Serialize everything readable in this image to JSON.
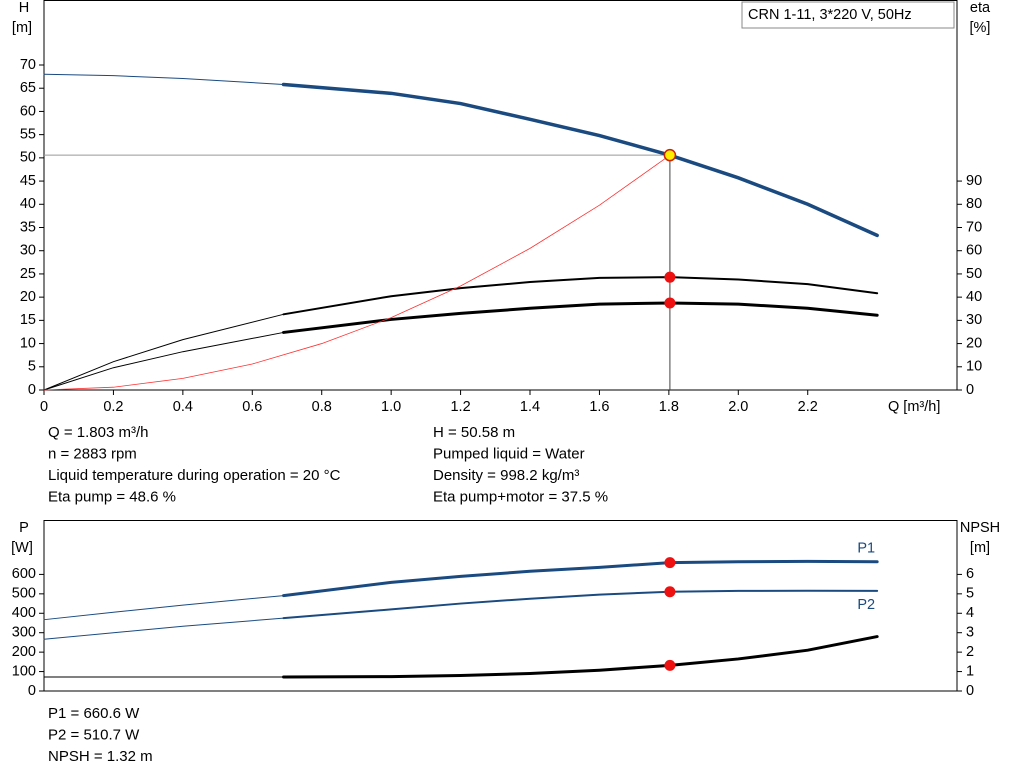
{
  "chart_data": [
    {
      "type": "line",
      "title": "CRN 1-11, 3*220 V, 50Hz",
      "y_label": "H",
      "y_unit": "[m]",
      "y2_label": "eta",
      "y2_unit": "[%]",
      "x_label": "Q [m³/h]",
      "xlim": [
        0,
        2.63
      ],
      "xticks": [
        0,
        0.2,
        0.4,
        0.6,
        0.8,
        {
          "value": 1,
          "label": "1.0"
        },
        1.2,
        1.4,
        1.6,
        1.8,
        {
          "value": 2,
          "label": "2.0"
        },
        2.2
      ],
      "ylim": [
        0,
        84
      ],
      "yticks": [
        0,
        5,
        10,
        15,
        20,
        25,
        30,
        35,
        40,
        45,
        50,
        55,
        60,
        65,
        70
      ],
      "y2lim": [
        0,
        168
      ],
      "y2ticks": [
        0,
        10,
        20,
        30,
        40,
        50,
        60,
        70,
        80,
        90
      ],
      "series": [
        {
          "color": "#1a4a80",
          "line_width": 1,
          "x": [
            0,
            0.2,
            0.4,
            0.69
          ],
          "values": [
            68,
            67.7,
            67.1,
            65.8
          ]
        },
        {
          "color": "#1a4a80",
          "line_width": 3.5,
          "x": [
            0.69,
            1.0,
            1.2,
            1.4,
            1.6,
            1.803,
            2.0,
            2.2,
            2.4
          ],
          "values": [
            65.8,
            63.9,
            61.7,
            58.3,
            54.8,
            50.58,
            45.7,
            40,
            33.3
          ]
        },
        {
          "color": "#000000",
          "line_width": 1,
          "axis": "y2",
          "x": [
            0,
            0.2,
            0.4,
            0.69
          ],
          "values": [
            0,
            12.2,
            21.7,
            32.6
          ]
        },
        {
          "color": "#000000",
          "line_width": 2,
          "axis": "y2",
          "x": [
            0.69,
            1.0,
            1.2,
            1.4,
            1.6,
            1.803,
            2.0,
            2.2,
            2.4
          ],
          "values": [
            32.6,
            40.4,
            43.9,
            46.5,
            48.3,
            48.6,
            47.6,
            45.6,
            41.7
          ]
        },
        {
          "color": "#000000",
          "line_width": 1,
          "axis": "y2",
          "x": [
            0,
            0.2,
            0.4,
            0.69
          ],
          "values": [
            0,
            9.6,
            16.5,
            24.8
          ]
        },
        {
          "color": "#000000",
          "line_width": 3,
          "axis": "y2",
          "x": [
            0.69,
            1.0,
            1.2,
            1.4,
            1.6,
            1.803,
            2.0,
            2.2,
            2.4
          ],
          "values": [
            24.8,
            30.4,
            33,
            35.2,
            37,
            37.5,
            37,
            35.2,
            32.2
          ]
        },
        {
          "color": "#ff3030",
          "line_width": 0.8,
          "x": [
            0,
            0.2,
            0.4,
            0.6,
            0.8,
            1.0,
            1.2,
            1.4,
            1.6,
            1.803
          ],
          "values": [
            0,
            0.6,
            2.5,
            5.6,
            10,
            15.6,
            22.4,
            30.5,
            39.8,
            50.58
          ]
        }
      ],
      "points": [
        {
          "x": 1.803,
          "y": 50.58,
          "color": "#ffee00",
          "guides": true
        },
        {
          "x": 1.803,
          "y": 48.6,
          "axis": "y2",
          "color": "#ee1111"
        },
        {
          "x": 1.803,
          "y": 37.5,
          "axis": "y2",
          "color": "#ee1111"
        }
      ],
      "annotations": [
        [
          "Q = 1.803 m³/h",
          "n = 2883 rpm",
          "Liquid temperature during operation = 20 °C",
          "Eta pump = 48.6 %"
        ],
        [
          "H = 50.58 m",
          "Pumped liquid = Water",
          "Density = 998.2 kg/m³",
          "Eta pump+motor = 37.5 %"
        ]
      ]
    },
    {
      "type": "line",
      "y_label": "P",
      "y_unit": "[W]",
      "y2_label": "NPSH",
      "y2_unit": "[m]",
      "xlim": [
        0,
        2.63
      ],
      "ylim": [
        0,
        880
      ],
      "yticks": [
        0,
        100,
        200,
        300,
        400,
        500,
        600
      ],
      "y2lim": [
        0,
        8.8
      ],
      "y2ticks": [
        0,
        1,
        2,
        3,
        4,
        5,
        6
      ],
      "series": [
        {
          "color": "#1a4a80",
          "line_width": 1,
          "x": [
            0,
            0.2,
            0.4,
            0.69
          ],
          "values": [
            367,
            405,
            442,
            491
          ]
        },
        {
          "name": "P1",
          "label_side": "above",
          "color": "#1a4a80",
          "line_width": 3,
          "x": [
            0.69,
            1.0,
            1.2,
            1.4,
            1.6,
            1.803,
            2.0,
            2.2,
            2.4
          ],
          "values": [
            491,
            559,
            590,
            616,
            636,
            660.6,
            665,
            667,
            665
          ]
        },
        {
          "color": "#1a4a80",
          "line_width": 1,
          "x": [
            0,
            0.2,
            0.4,
            0.69
          ],
          "values": [
            266,
            300,
            333,
            375
          ]
        },
        {
          "name": "P2",
          "label_side": "below",
          "color": "#1a4a80",
          "line_width": 2,
          "x": [
            0.69,
            1.0,
            1.2,
            1.4,
            1.6,
            1.803,
            2.0,
            2.2,
            2.4
          ],
          "values": [
            375,
            420,
            450,
            475,
            496,
            510.7,
            515,
            516,
            515
          ]
        },
        {
          "color": "#000000",
          "line_width": 1,
          "axis": "y2",
          "x": [
            0,
            0.2,
            0.4,
            0.69
          ],
          "values": [
            0.72,
            0.72,
            0.72,
            0.72
          ]
        },
        {
          "color": "#000000",
          "line_width": 3,
          "axis": "y2",
          "x": [
            0.69,
            1.0,
            1.2,
            1.4,
            1.6,
            1.803,
            2.0,
            2.2,
            2.4
          ],
          "values": [
            0.72,
            0.74,
            0.8,
            0.9,
            1.07,
            1.32,
            1.65,
            2.1,
            2.8
          ]
        }
      ],
      "points": [
        {
          "x": 1.803,
          "y": 660.6,
          "color": "#ee1111"
        },
        {
          "x": 1.803,
          "y": 510.7,
          "color": "#ee1111"
        },
        {
          "x": 1.803,
          "y": 1.32,
          "axis": "y2",
          "color": "#ee1111"
        }
      ],
      "annotations": [
        [
          "P1 = 660.6 W",
          "P2 = 510.7 W",
          "NPSH = 1.32 m"
        ]
      ]
    }
  ]
}
